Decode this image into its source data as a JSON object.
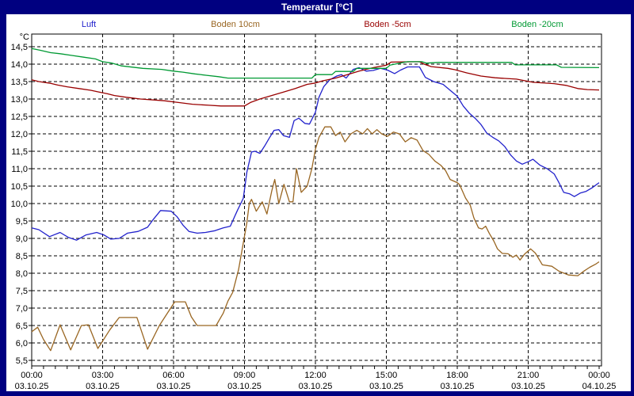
{
  "window": {
    "title": "Temperatur [°C]"
  },
  "colors": {
    "frame": "#000080",
    "title_text": "#FFFFFF",
    "plot_background": "#FFFFFF",
    "grid": "#000000",
    "luft": "#2222CC",
    "boden_10cm": "#996622",
    "boden_minus5cm": "#990000",
    "boden_minus20cm": "#009933"
  },
  "legend": [
    {
      "label": "Luft",
      "color": "#2222CC"
    },
    {
      "label": "Boden 10cm",
      "color": "#996622"
    },
    {
      "label": "Boden -5cm",
      "color": "#990000"
    },
    {
      "label": "Boden -20cm",
      "color": "#009933"
    }
  ],
  "chart_data": {
    "type": "line",
    "title": "Temperatur [°C]",
    "y_unit": "°C",
    "ylim": [
      5.5,
      14.5
    ],
    "y_step": 0.5,
    "xlim_hours": [
      0,
      24
    ],
    "grid": "black dashed lines every 0.5 °C and every 3 h",
    "legend_position": "top row above plot",
    "y_tick_labels": [
      "14,5",
      "14,0",
      "13,5",
      "13,0",
      "12,5",
      "12,0",
      "11,5",
      "11,0",
      "10,5",
      "10,0",
      "9,5",
      "9,0",
      "8,5",
      "8,0",
      "7,5",
      "7,0",
      "6,5",
      "6,0",
      "5,5"
    ],
    "x_ticks": [
      {
        "hour": 0,
        "time": "00:00",
        "date": "03.10.25"
      },
      {
        "hour": 3,
        "time": "03:00",
        "date": "03.10.25"
      },
      {
        "hour": 6,
        "time": "06:00",
        "date": "03.10.25"
      },
      {
        "hour": 9,
        "time": "09:00",
        "date": "03.10.25"
      },
      {
        "hour": 12,
        "time": "12:00",
        "date": "03.10.25"
      },
      {
        "hour": 15,
        "time": "15:00",
        "date": "03.10.25"
      },
      {
        "hour": 18,
        "time": "18:00",
        "date": "03.10.25"
      },
      {
        "hour": 21,
        "time": "21:00",
        "date": "03.10.25"
      },
      {
        "hour": 24,
        "time": "00:00",
        "date": "04.10.25"
      }
    ],
    "minor_x_tick_hours": 0.5,
    "series": [
      {
        "name": "Luft",
        "color": "#2222CC",
        "points": [
          [
            0,
            9.3
          ],
          [
            0.3,
            9.25
          ],
          [
            0.75,
            9.05
          ],
          [
            1.2,
            9.17
          ],
          [
            1.55,
            9.03
          ],
          [
            1.9,
            8.95
          ],
          [
            2.3,
            9.1
          ],
          [
            2.75,
            9.17
          ],
          [
            3.05,
            9.1
          ],
          [
            3.35,
            8.98
          ],
          [
            3.7,
            9.0
          ],
          [
            4.05,
            9.15
          ],
          [
            4.5,
            9.2
          ],
          [
            4.9,
            9.32
          ],
          [
            5.15,
            9.55
          ],
          [
            5.45,
            9.8
          ],
          [
            5.9,
            9.78
          ],
          [
            6.15,
            9.62
          ],
          [
            6.4,
            9.38
          ],
          [
            6.65,
            9.2
          ],
          [
            7.0,
            9.15
          ],
          [
            7.35,
            9.17
          ],
          [
            7.75,
            9.22
          ],
          [
            8.1,
            9.3
          ],
          [
            8.4,
            9.35
          ],
          [
            8.7,
            9.8
          ],
          [
            8.95,
            10.15
          ],
          [
            9.1,
            10.9
          ],
          [
            9.3,
            11.48
          ],
          [
            9.45,
            11.5
          ],
          [
            9.65,
            11.44
          ],
          [
            9.85,
            11.65
          ],
          [
            10.05,
            11.88
          ],
          [
            10.25,
            12.1
          ],
          [
            10.45,
            12.12
          ],
          [
            10.65,
            11.95
          ],
          [
            10.9,
            11.9
          ],
          [
            11.1,
            12.38
          ],
          [
            11.3,
            12.45
          ],
          [
            11.55,
            12.3
          ],
          [
            11.75,
            12.28
          ],
          [
            12.0,
            12.62
          ],
          [
            12.15,
            13.05
          ],
          [
            12.35,
            13.35
          ],
          [
            12.6,
            13.55
          ],
          [
            12.9,
            13.66
          ],
          [
            13.1,
            13.7
          ],
          [
            13.3,
            13.6
          ],
          [
            13.6,
            13.85
          ],
          [
            13.85,
            13.9
          ],
          [
            14.15,
            13.8
          ],
          [
            14.45,
            13.82
          ],
          [
            14.75,
            13.88
          ],
          [
            15.05,
            13.83
          ],
          [
            15.35,
            13.73
          ],
          [
            15.6,
            13.83
          ],
          [
            15.9,
            13.92
          ],
          [
            16.4,
            13.92
          ],
          [
            16.65,
            13.62
          ],
          [
            17.0,
            13.5
          ],
          [
            17.4,
            13.42
          ],
          [
            17.7,
            13.25
          ],
          [
            18.0,
            13.08
          ],
          [
            18.25,
            12.8
          ],
          [
            18.5,
            12.6
          ],
          [
            18.75,
            12.45
          ],
          [
            19.0,
            12.27
          ],
          [
            19.25,
            12.02
          ],
          [
            19.5,
            11.9
          ],
          [
            19.75,
            11.8
          ],
          [
            20.0,
            11.64
          ],
          [
            20.25,
            11.4
          ],
          [
            20.5,
            11.22
          ],
          [
            20.75,
            11.13
          ],
          [
            21.0,
            11.2
          ],
          [
            21.2,
            11.27
          ],
          [
            21.5,
            11.1
          ],
          [
            21.8,
            11.0
          ],
          [
            22.1,
            10.85
          ],
          [
            22.3,
            10.6
          ],
          [
            22.5,
            10.32
          ],
          [
            22.75,
            10.28
          ],
          [
            22.95,
            10.2
          ],
          [
            23.2,
            10.3
          ],
          [
            23.45,
            10.35
          ],
          [
            23.7,
            10.45
          ],
          [
            24,
            10.6
          ]
        ]
      },
      {
        "name": "Boden 10cm",
        "color": "#996622",
        "points": [
          [
            0,
            6.32
          ],
          [
            0.25,
            6.45
          ],
          [
            0.5,
            6.1
          ],
          [
            0.8,
            5.78
          ],
          [
            1.2,
            6.52
          ],
          [
            1.65,
            5.8
          ],
          [
            2.1,
            6.5
          ],
          [
            2.4,
            6.52
          ],
          [
            2.8,
            5.84
          ],
          [
            3.3,
            6.37
          ],
          [
            3.7,
            6.73
          ],
          [
            4.45,
            6.73
          ],
          [
            4.9,
            5.82
          ],
          [
            5.4,
            6.5
          ],
          [
            6.05,
            7.18
          ],
          [
            6.5,
            7.18
          ],
          [
            6.75,
            6.75
          ],
          [
            7.0,
            6.5
          ],
          [
            7.8,
            6.5
          ],
          [
            8.1,
            6.85
          ],
          [
            8.3,
            7.2
          ],
          [
            8.5,
            7.45
          ],
          [
            8.75,
            8.1
          ],
          [
            8.95,
            8.87
          ],
          [
            9.1,
            9.45
          ],
          [
            9.2,
            10.0
          ],
          [
            9.3,
            10.12
          ],
          [
            9.5,
            9.78
          ],
          [
            9.75,
            10.05
          ],
          [
            9.95,
            9.7
          ],
          [
            10.15,
            10.35
          ],
          [
            10.28,
            10.69
          ],
          [
            10.45,
            10.0
          ],
          [
            10.67,
            10.55
          ],
          [
            10.9,
            10.05
          ],
          [
            11.05,
            10.05
          ],
          [
            11.2,
            11.0
          ],
          [
            11.4,
            10.32
          ],
          [
            11.65,
            10.5
          ],
          [
            11.85,
            11.0
          ],
          [
            12.0,
            11.56
          ],
          [
            12.15,
            11.9
          ],
          [
            12.4,
            12.2
          ],
          [
            12.65,
            12.2
          ],
          [
            12.85,
            11.95
          ],
          [
            13.05,
            12.05
          ],
          [
            13.25,
            11.77
          ],
          [
            13.5,
            12.0
          ],
          [
            13.75,
            12.1
          ],
          [
            14.0,
            12.0
          ],
          [
            14.2,
            12.15
          ],
          [
            14.4,
            12.0
          ],
          [
            14.6,
            12.12
          ],
          [
            14.8,
            12.0
          ],
          [
            15.05,
            11.93
          ],
          [
            15.3,
            12.05
          ],
          [
            15.55,
            12.0
          ],
          [
            15.8,
            11.77
          ],
          [
            16.05,
            11.89
          ],
          [
            16.3,
            11.82
          ],
          [
            16.55,
            11.52
          ],
          [
            16.8,
            11.41
          ],
          [
            17.05,
            11.22
          ],
          [
            17.3,
            11.1
          ],
          [
            17.5,
            10.95
          ],
          [
            17.7,
            10.69
          ],
          [
            18.0,
            10.6
          ],
          [
            18.1,
            10.54
          ],
          [
            18.35,
            10.16
          ],
          [
            18.55,
            9.95
          ],
          [
            18.7,
            9.59
          ],
          [
            18.9,
            9.3
          ],
          [
            19.05,
            9.27
          ],
          [
            19.2,
            9.35
          ],
          [
            19.35,
            9.15
          ],
          [
            19.55,
            8.92
          ],
          [
            19.7,
            8.7
          ],
          [
            19.9,
            8.57
          ],
          [
            20.15,
            8.56
          ],
          [
            20.35,
            8.46
          ],
          [
            20.5,
            8.52
          ],
          [
            20.65,
            8.38
          ],
          [
            20.85,
            8.55
          ],
          [
            21.1,
            8.7
          ],
          [
            21.3,
            8.58
          ],
          [
            21.6,
            8.24
          ],
          [
            22.0,
            8.2
          ],
          [
            22.3,
            8.06
          ],
          [
            22.7,
            7.95
          ],
          [
            23.1,
            7.93
          ],
          [
            23.35,
            8.06
          ],
          [
            23.6,
            8.17
          ],
          [
            23.85,
            8.26
          ],
          [
            24,
            8.33
          ]
        ]
      },
      {
        "name": "Boden -5cm",
        "color": "#990000",
        "points": [
          [
            0,
            13.55
          ],
          [
            0.3,
            13.5
          ],
          [
            0.8,
            13.45
          ],
          [
            1.1,
            13.4
          ],
          [
            1.5,
            13.35
          ],
          [
            2.0,
            13.3
          ],
          [
            2.5,
            13.25
          ],
          [
            2.85,
            13.2
          ],
          [
            3.2,
            13.15
          ],
          [
            3.5,
            13.1
          ],
          [
            4.0,
            13.05
          ],
          [
            4.6,
            13.0
          ],
          [
            5.6,
            12.95
          ],
          [
            6.2,
            12.9
          ],
          [
            6.8,
            12.85
          ],
          [
            7.5,
            12.82
          ],
          [
            8.0,
            12.8
          ],
          [
            9.0,
            12.8
          ],
          [
            9.25,
            12.9
          ],
          [
            9.65,
            13.0
          ],
          [
            10.15,
            13.1
          ],
          [
            10.65,
            13.2
          ],
          [
            11.15,
            13.3
          ],
          [
            11.65,
            13.42
          ],
          [
            12.0,
            13.46
          ],
          [
            12.3,
            13.52
          ],
          [
            12.85,
            13.6
          ],
          [
            13.35,
            13.7
          ],
          [
            13.85,
            13.8
          ],
          [
            14.45,
            13.9
          ],
          [
            15.0,
            13.97
          ],
          [
            15.2,
            14.06
          ],
          [
            16.4,
            14.07
          ],
          [
            16.6,
            14.0
          ],
          [
            16.9,
            13.93
          ],
          [
            17.6,
            13.88
          ],
          [
            17.9,
            13.84
          ],
          [
            18.4,
            13.75
          ],
          [
            19.0,
            13.66
          ],
          [
            19.6,
            13.61
          ],
          [
            20.5,
            13.57
          ],
          [
            21.2,
            13.48
          ],
          [
            22.1,
            13.44
          ],
          [
            22.6,
            13.39
          ],
          [
            23.1,
            13.3
          ],
          [
            23.5,
            13.27
          ],
          [
            24,
            13.26
          ]
        ]
      },
      {
        "name": "Boden -20cm",
        "color": "#009933",
        "points": [
          [
            0,
            14.45
          ],
          [
            0.35,
            14.4
          ],
          [
            0.8,
            14.33
          ],
          [
            1.2,
            14.3
          ],
          [
            1.7,
            14.25
          ],
          [
            2.2,
            14.2
          ],
          [
            2.7,
            14.15
          ],
          [
            3.0,
            14.07
          ],
          [
            3.4,
            14.03
          ],
          [
            3.8,
            13.95
          ],
          [
            4.7,
            13.88
          ],
          [
            5.5,
            13.85
          ],
          [
            6.0,
            13.8
          ],
          [
            6.4,
            13.77
          ],
          [
            6.9,
            13.72
          ],
          [
            7.4,
            13.68
          ],
          [
            7.9,
            13.64
          ],
          [
            8.3,
            13.6
          ],
          [
            11.85,
            13.6
          ],
          [
            12.0,
            13.7
          ],
          [
            12.7,
            13.7
          ],
          [
            12.85,
            13.79
          ],
          [
            13.6,
            13.79
          ],
          [
            13.75,
            13.88
          ],
          [
            15.0,
            13.88
          ],
          [
            15.15,
            13.97
          ],
          [
            15.5,
            14.02
          ],
          [
            15.9,
            14.07
          ],
          [
            16.5,
            14.07
          ],
          [
            16.7,
            14.03
          ],
          [
            17.2,
            14.05
          ],
          [
            20.3,
            14.05
          ],
          [
            20.45,
            13.98
          ],
          [
            22.2,
            13.98
          ],
          [
            22.4,
            13.91
          ],
          [
            24,
            13.9
          ]
        ]
      }
    ]
  }
}
